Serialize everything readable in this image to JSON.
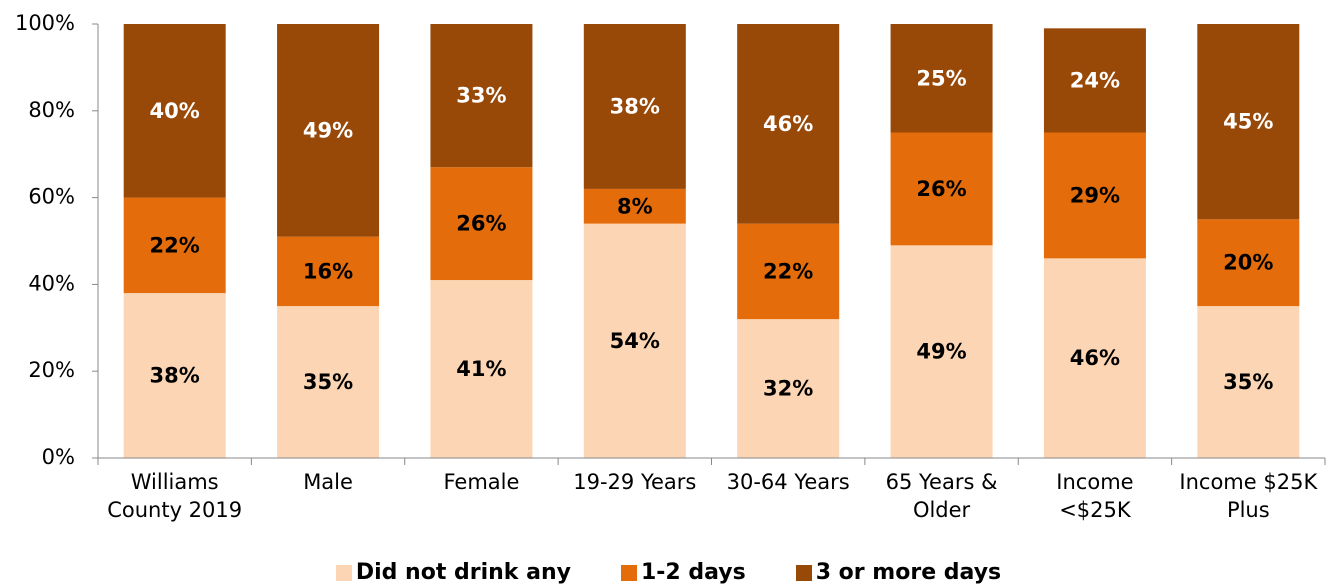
{
  "chart_data": {
    "type": "stacked_bar",
    "categories": [
      "Williams\nCounty 2019",
      "Male",
      "Female",
      "19-29 Years",
      "30-64 Years",
      "65 Years &\nOlder",
      "Income\n<$25K",
      "Income $25K\nPlus"
    ],
    "series": [
      {
        "name": "Did not drink any",
        "color": "#fcd5b4",
        "label_color": "#000000",
        "values": [
          38,
          35,
          41,
          54,
          32,
          49,
          46,
          35
        ],
        "value_labels": [
          "38%",
          "35%",
          "41%",
          "54%",
          "32%",
          "49%",
          "46%",
          "35%"
        ]
      },
      {
        "name": "1-2 days",
        "color": "#e46c0a",
        "label_color": "#000000",
        "values": [
          22,
          16,
          26,
          8,
          22,
          26,
          29,
          20
        ],
        "value_labels": [
          "22%",
          "16%",
          "26%",
          "8%",
          "22%",
          "26%",
          "29%",
          "20%"
        ]
      },
      {
        "name": "3 or more days",
        "color": "#984807",
        "label_color": "#ffffff",
        "values": [
          40,
          49,
          33,
          38,
          46,
          25,
          24,
          45
        ],
        "value_labels": [
          "40%",
          "49%",
          "33%",
          "38%",
          "46%",
          "25%",
          "24%",
          "45%"
        ]
      }
    ],
    "ylim": [
      0,
      100
    ],
    "yticks": [
      {
        "value": 0,
        "label": "0%"
      },
      {
        "value": 20,
        "label": "20%"
      },
      {
        "value": 40,
        "label": "40%"
      },
      {
        "value": 60,
        "label": "60%"
      },
      {
        "value": 80,
        "label": "80%"
      },
      {
        "value": 100,
        "label": "100%"
      }
    ],
    "legend": "bottom"
  }
}
